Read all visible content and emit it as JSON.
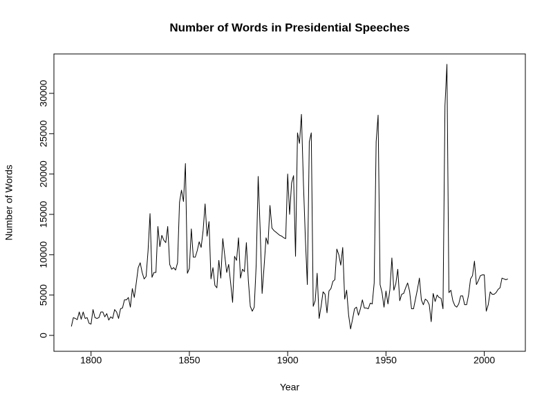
{
  "chart_data": {
    "type": "line",
    "title": "Number of Words in Presidential Speeches",
    "xlabel": "Year",
    "ylabel": "Number of Words",
    "color": "#000000",
    "x": [
      1790,
      1791,
      1792,
      1793,
      1794,
      1795,
      1796,
      1797,
      1798,
      1799,
      1800,
      1801,
      1802,
      1803,
      1804,
      1805,
      1806,
      1807,
      1808,
      1809,
      1810,
      1811,
      1812,
      1813,
      1814,
      1815,
      1816,
      1817,
      1818,
      1819,
      1820,
      1821,
      1822,
      1823,
      1824,
      1825,
      1826,
      1827,
      1828,
      1829,
      1830,
      1831,
      1832,
      1833,
      1834,
      1835,
      1836,
      1837,
      1838,
      1839,
      1840,
      1841,
      1842,
      1843,
      1844,
      1845,
      1846,
      1847,
      1848,
      1849,
      1850,
      1851,
      1852,
      1853,
      1854,
      1855,
      1856,
      1857,
      1858,
      1859,
      1860,
      1861,
      1862,
      1863,
      1864,
      1865,
      1866,
      1867,
      1868,
      1869,
      1870,
      1871,
      1872,
      1873,
      1874,
      1875,
      1876,
      1877,
      1878,
      1879,
      1880,
      1881,
      1882,
      1883,
      1884,
      1885,
      1886,
      1887,
      1888,
      1889,
      1890,
      1891,
      1892,
      1893,
      1894,
      1895,
      1896,
      1897,
      1898,
      1899,
      1900,
      1901,
      1902,
      1903,
      1904,
      1905,
      1906,
      1907,
      1908,
      1909,
      1910,
      1911,
      1912,
      1913,
      1914,
      1915,
      1916,
      1917,
      1918,
      1919,
      1920,
      1921,
      1922,
      1923,
      1924,
      1925,
      1926,
      1927,
      1928,
      1929,
      1930,
      1931,
      1932,
      1933,
      1934,
      1935,
      1936,
      1937,
      1938,
      1939,
      1940,
      1941,
      1942,
      1943,
      1944,
      1945,
      1946,
      1947,
      1948,
      1949,
      1950,
      1951,
      1952,
      1953,
      1954,
      1955,
      1956,
      1957,
      1958,
      1959,
      1960,
      1961,
      1962,
      1963,
      1964,
      1965,
      1966,
      1967,
      1968,
      1969,
      1970,
      1971,
      1972,
      1973,
      1974,
      1975,
      1976,
      1977,
      1978,
      1979,
      1980,
      1981,
      1982,
      1983,
      1984,
      1985,
      1986,
      1987,
      1988,
      1989,
      1990,
      1991,
      1992,
      1993,
      1994,
      1995,
      1996,
      1997,
      1998,
      1999,
      2000,
      2001,
      2002,
      2003,
      2004,
      2005,
      2006,
      2007,
      2008,
      2009,
      2010,
      2011,
      2012
    ],
    "values": [
      1100,
      2200,
      2100,
      1950,
      2900,
      2000,
      2900,
      2100,
      2200,
      1500,
      1400,
      3200,
      2200,
      2100,
      2200,
      2900,
      2900,
      2300,
      2700,
      1900,
      2300,
      2100,
      3200,
      2900,
      2100,
      3300,
      3400,
      4400,
      4400,
      4700,
      3500,
      5800,
      4700,
      6500,
      8400,
      9000,
      7800,
      7000,
      7300,
      10500,
      15100,
      7200,
      7800,
      7800,
      13500,
      11000,
      12400,
      11800,
      11500,
      13500,
      8800,
      8200,
      8400,
      8100,
      9000,
      16500,
      18000,
      16600,
      21300,
      7700,
      8300,
      13200,
      9700,
      9700,
      10500,
      11600,
      10900,
      13000,
      16300,
      12300,
      14100,
      7000,
      8400,
      6200,
      5900,
      9300,
      7100,
      12000,
      9900,
      7800,
      8800,
      6500,
      4100,
      9800,
      9300,
      12100,
      7100,
      8200,
      7900,
      11500,
      6800,
      3600,
      3000,
      3500,
      8800,
      19700,
      13200,
      5200,
      8500,
      12100,
      11300,
      16100,
      13300,
      13000,
      12800,
      12600,
      12400,
      12300,
      12100,
      12000,
      20000,
      15000,
      18900,
      19800,
      9800,
      25100,
      23800,
      27400,
      19000,
      12000,
      6300,
      24000,
      25100,
      3600,
      4300,
      7700,
      2100,
      3600,
      5400,
      5100,
      2800,
      5500,
      5800,
      6700,
      6900,
      10700,
      10000,
      8700,
      10900,
      4500,
      5600,
      2500,
      800,
      2000,
      3300,
      3500,
      2500,
      3300,
      4400,
      3400,
      3400,
      3300,
      4000,
      3900,
      6500,
      24000,
      27300,
      6300,
      5300,
      3500,
      5500,
      3900,
      5700,
      9600,
      5600,
      6400,
      8200,
      4300,
      5100,
      5200,
      5900,
      6500,
      5500,
      3300,
      3300,
      4500,
      5700,
      7100,
      4400,
      3800,
      4500,
      4300,
      3800,
      1700,
      5200,
      4200,
      5000,
      4700,
      4600,
      3300,
      28500,
      33600,
      5300,
      5600,
      4300,
      3700,
      3500,
      3900,
      4900,
      4900,
      3800,
      3800,
      5000,
      7000,
      7400,
      9200,
      6300,
      6800,
      7400,
      7500,
      7500,
      3000,
      3800,
      5400,
      5100,
      5100,
      5300,
      5700,
      5900,
      7100,
      7000,
      6900,
      7000
    ],
    "xlim": [
      1781.12,
      2020.88
    ],
    "ylim": [
      -1971,
      34886
    ],
    "xticks": [
      1800,
      1850,
      1900,
      1950,
      2000
    ],
    "yticks": [
      0,
      5000,
      10000,
      15000,
      20000,
      25000,
      30000
    ]
  }
}
